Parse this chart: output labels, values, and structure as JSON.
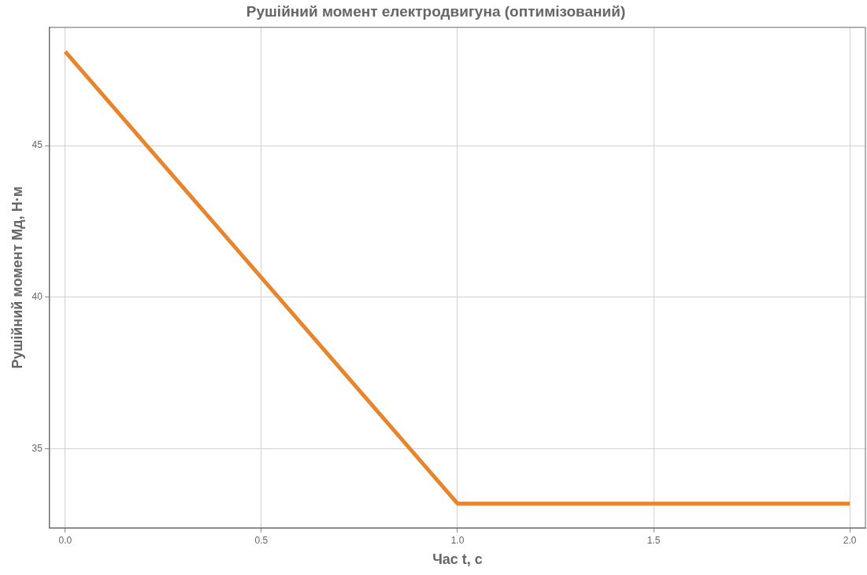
{
  "chart_data": {
    "type": "line",
    "title": "Рушійний момент електродвигуна (оптимізований)",
    "xlabel": "Час t, с",
    "ylabel": "Рушійний момент Мд, Н·м",
    "x": [
      0,
      1,
      2
    ],
    "series": [
      {
        "color": "#e8842c",
        "values": [
          48.1,
          33.2,
          33.2
        ]
      }
    ],
    "xlim": [
      -0.04,
      2.04
    ],
    "ylim": [
      32.4,
      48.9
    ],
    "xticks": [
      {
        "value": 0,
        "label": "0.0"
      },
      {
        "value": 0.5,
        "label": "0.5"
      },
      {
        "value": 1,
        "label": "1.0"
      },
      {
        "value": 1.5,
        "label": "1.5"
      },
      {
        "value": 2,
        "label": "2.0"
      }
    ],
    "yticks": [
      35,
      40,
      45
    ],
    "grid": true,
    "line_style": "solid"
  }
}
